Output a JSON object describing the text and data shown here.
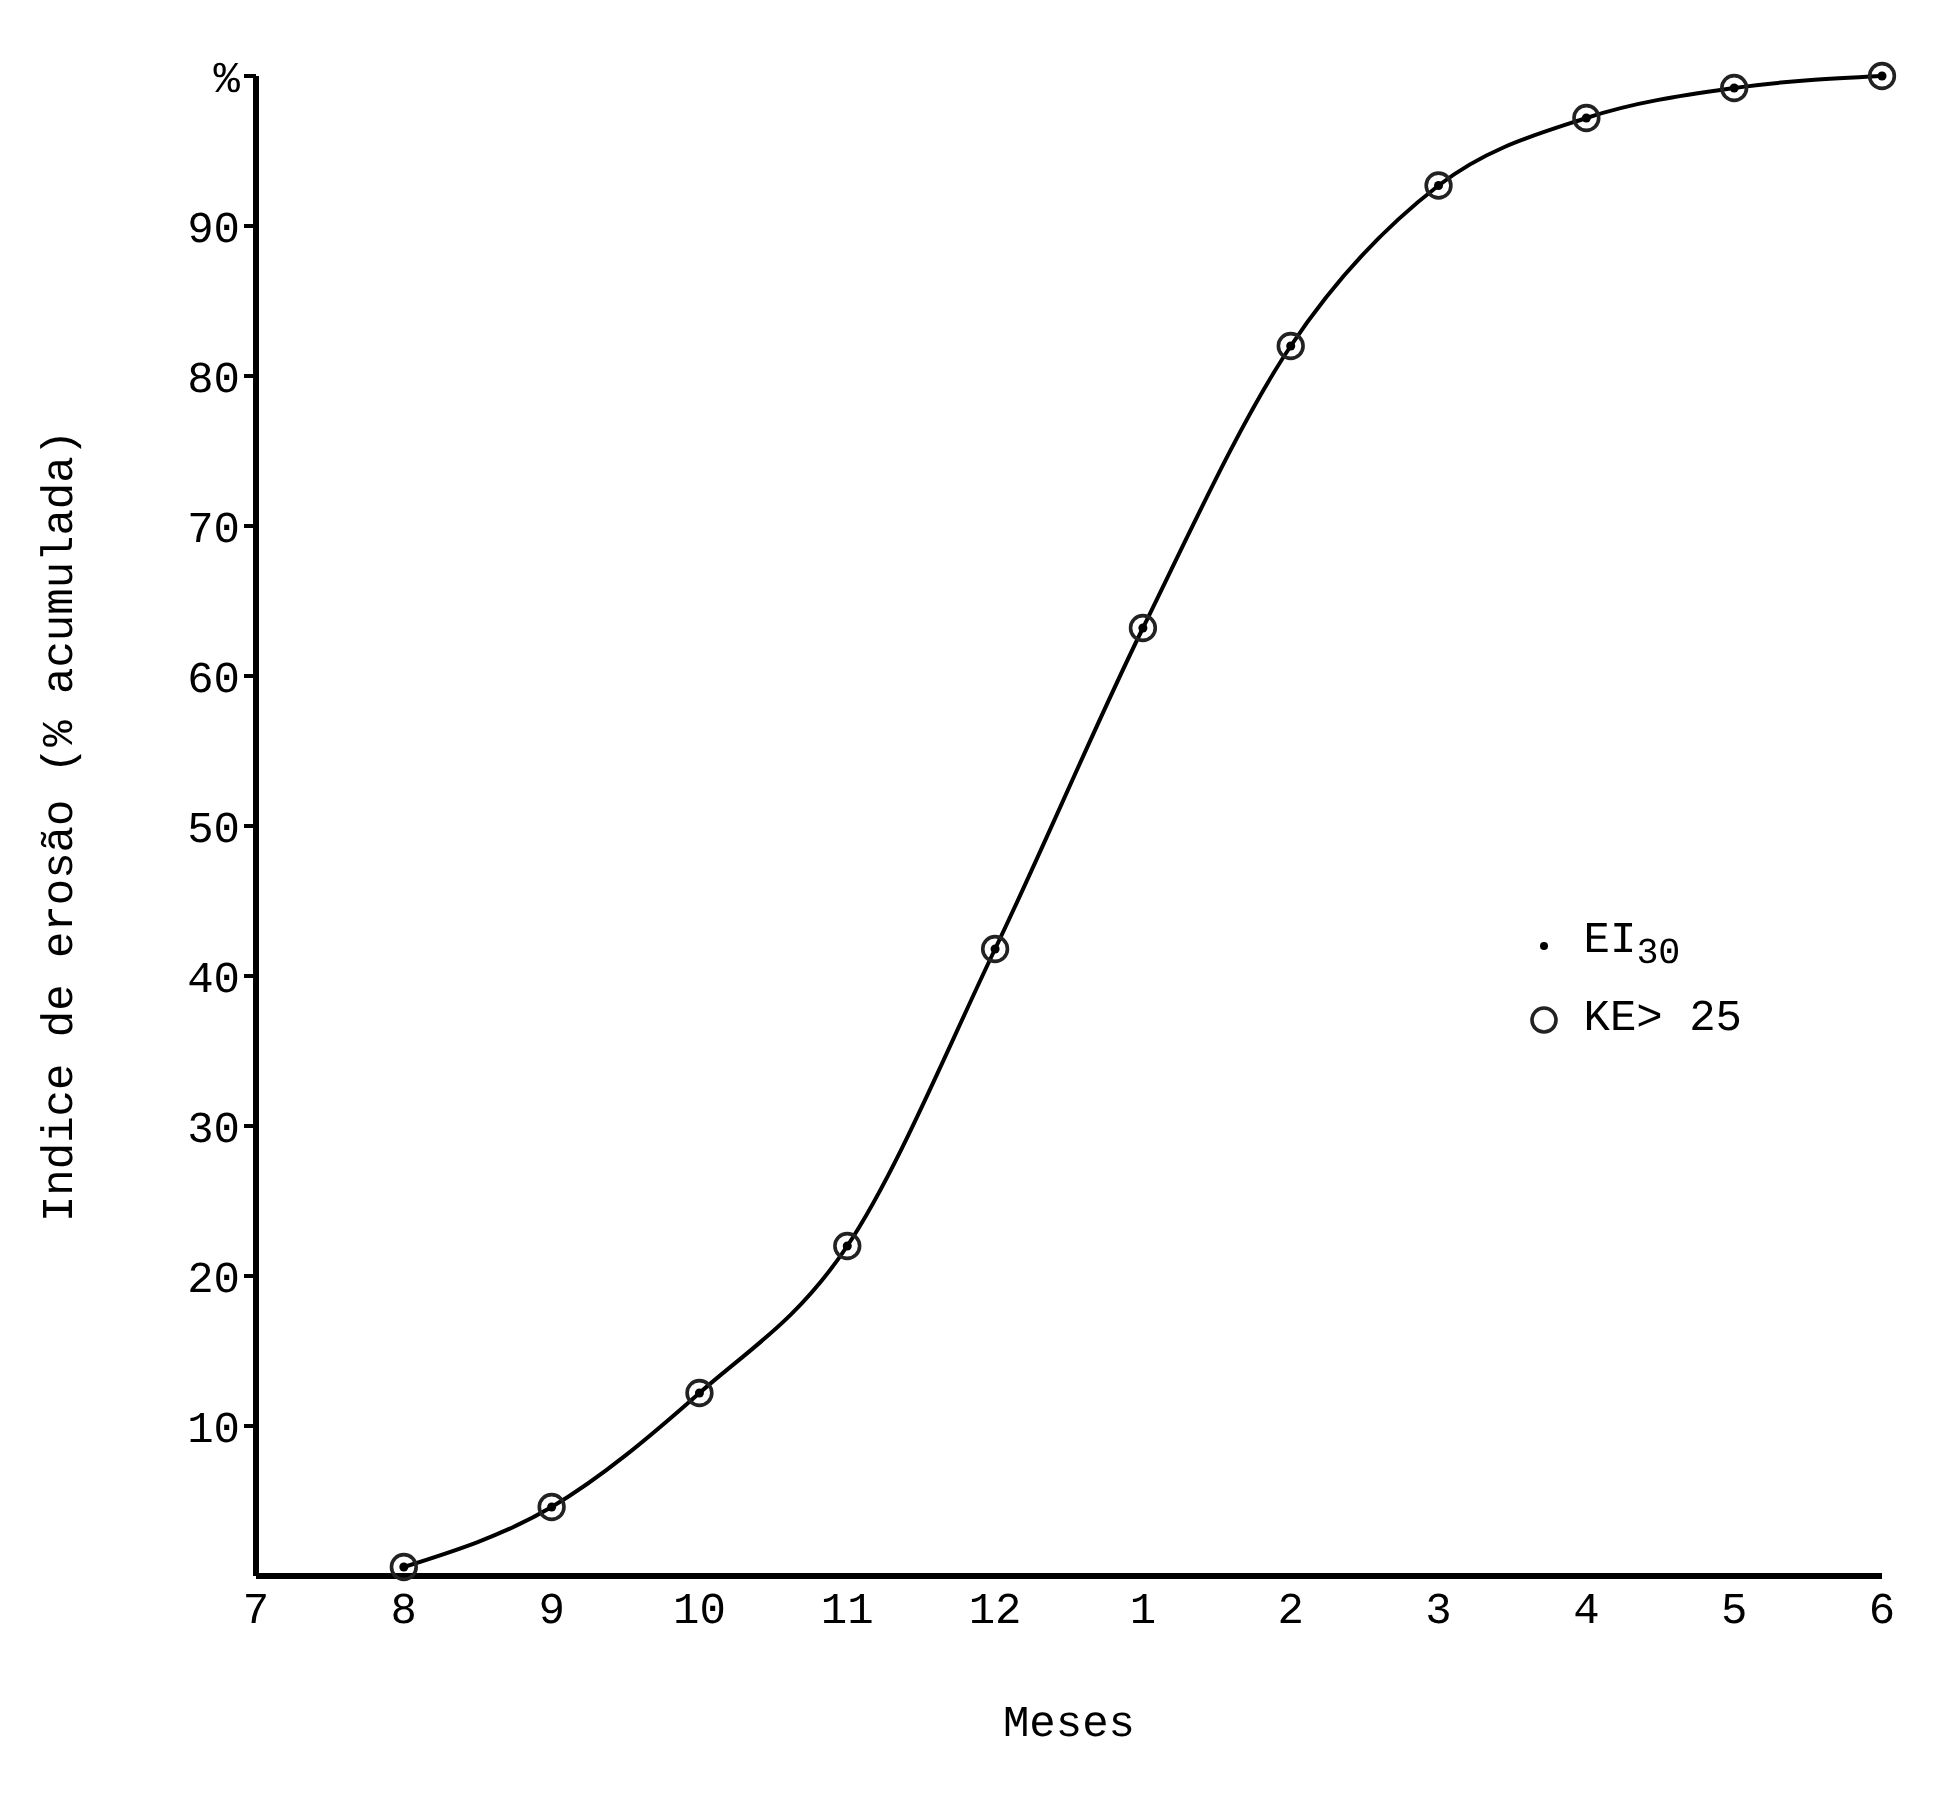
{
  "chart_data": {
    "type": "line",
    "xlabel": "Meses",
    "ylabel": "Indice de  erosão  (% acumulada)",
    "categories": [
      "7",
      "8",
      "9",
      "10",
      "11",
      "12",
      "1",
      "2",
      "3",
      "4",
      "5",
      "6"
    ],
    "ylim": [
      0,
      100
    ],
    "yticks": [
      10,
      20,
      30,
      40,
      50,
      60,
      70,
      80,
      90,
      {
        "value": 100,
        "label": "%"
      }
    ],
    "legend": "right",
    "series": [
      {
        "type": "line",
        "color": "#000000",
        "marker": "none",
        "values": [
          null,
          0.6,
          4.6,
          12.2,
          22,
          41.8,
          63.2,
          82,
          92.7,
          97.2,
          99.2,
          100
        ]
      },
      {
        "type": "scatter",
        "name": "EI$_{30}$",
        "color": "#000000",
        "marker": "circle",
        "values": [
          null,
          0.6,
          4.6,
          12.2,
          22,
          41.8,
          63.2,
          82,
          92.7,
          97.2,
          99.2,
          100
        ]
      },
      {
        "type": "scatter",
        "name": "KE> 25",
        "color": "#222222",
        "marker": "circle",
        "values": [
          null,
          0.6,
          4.6,
          12.2,
          22,
          41.8,
          63.2,
          82,
          92.7,
          97.2,
          99.2,
          100
        ]
      }
    ]
  }
}
